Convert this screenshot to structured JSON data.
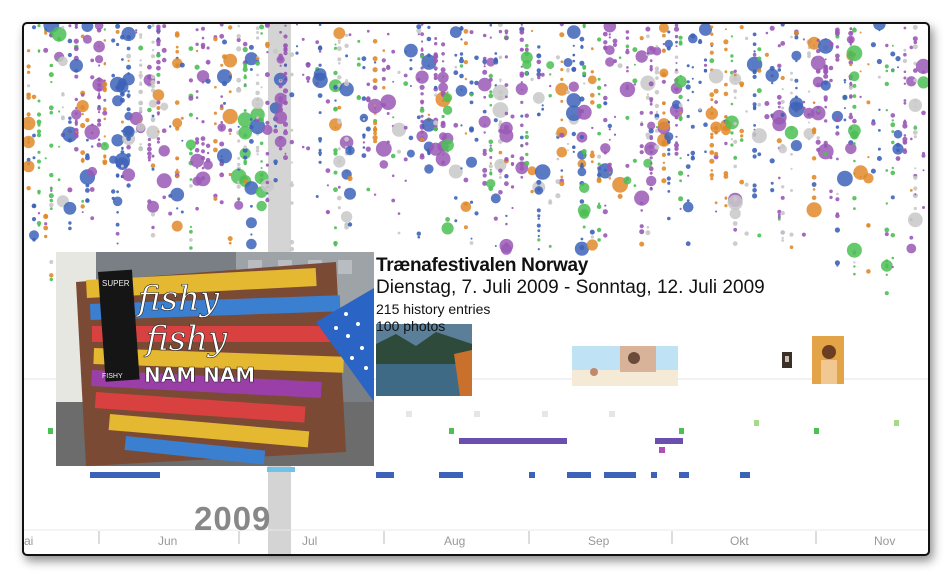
{
  "event": {
    "title": "Trænafestivalen Norway",
    "dates": "Dienstag, 7. Juli 2009 - Sonntag, 12. Juli 2009",
    "history_entries": "215 history entries",
    "photos_count": "100 photos"
  },
  "timeline": {
    "year": "2009",
    "months": [
      "ai",
      "Jun",
      "Jul",
      "Aug",
      "Sep",
      "Okt",
      "Nov"
    ]
  },
  "photo_sign_text": {
    "line1": "fishy",
    "line2": "fishy",
    "line3": "NAM NAM",
    "board_top": "SUPER",
    "board_bottom": "FISHY"
  },
  "colors": {
    "purple": "#9a59b6",
    "blue": "#3d63b8",
    "green": "#4cbf55",
    "grey": "#c8c8c8",
    "orange": "#e08a2a",
    "highlight": "#cfcfcf"
  }
}
